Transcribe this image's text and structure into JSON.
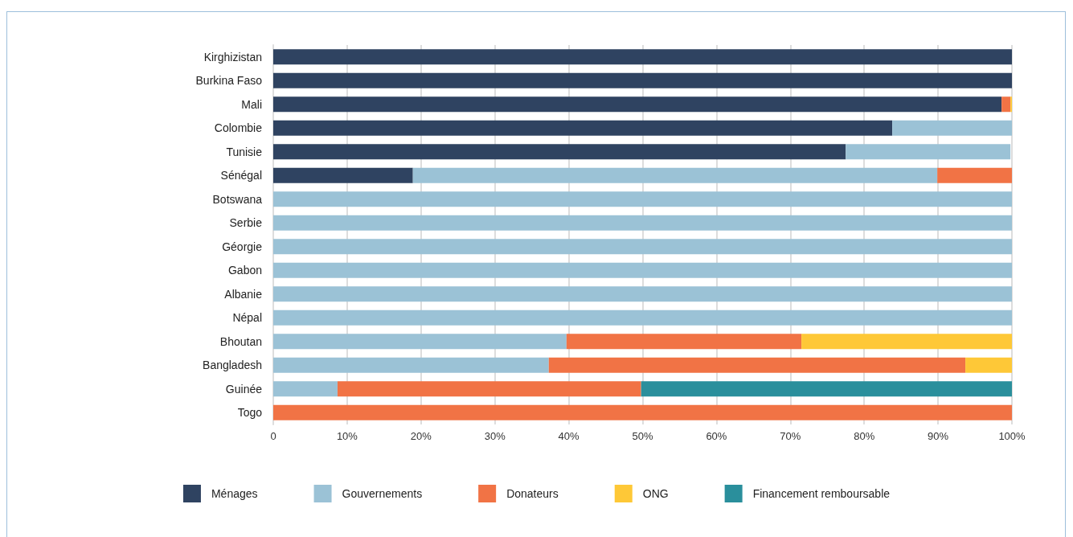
{
  "chart_data": {
    "type": "bar",
    "orientation": "horizontal",
    "stacked": true,
    "grid": "x",
    "legend": "bottom",
    "categories": [
      "Kirghizistan",
      "Burkina Faso",
      "Mali",
      "Colombie",
      "Tunisie",
      "Sénégal",
      "Botswana",
      "Serbie",
      "Géorgie",
      "Gabon",
      "Albanie",
      "Népal",
      "Bhoutan",
      "Bangladesh",
      "Guinée",
      "Togo"
    ],
    "xlim": [
      0,
      100
    ],
    "xticks": [
      0,
      {
        "value": 10,
        "label": "10%"
      },
      {
        "value": 20,
        "label": "20%"
      },
      {
        "value": 30,
        "label": "30%"
      },
      {
        "value": 40,
        "label": "40%"
      },
      {
        "value": 50,
        "label": "50%"
      },
      {
        "value": 60,
        "label": "60%"
      },
      {
        "value": 70,
        "label": "70%"
      },
      {
        "value": 80,
        "label": "80%"
      },
      {
        "value": 90,
        "label": "90%"
      },
      {
        "value": 100,
        "label": "100%"
      }
    ],
    "series": [
      {
        "name": "Ménages",
        "color": "#2f4361",
        "values": [
          100,
          100,
          98.6,
          83.8,
          77.5,
          18.9,
          null,
          null,
          null,
          null,
          null,
          null,
          null,
          null,
          null,
          null
        ]
      },
      {
        "name": "Gouvernements",
        "color": "#9bc2d6",
        "values": [
          null,
          null,
          null,
          16.2,
          22.3,
          71.0,
          100,
          100,
          100,
          100,
          100,
          100,
          39.7,
          37.3,
          8.7,
          null
        ]
      },
      {
        "name": "Donateurs",
        "color": "#f17345",
        "values": [
          null,
          null,
          1.2,
          null,
          null,
          10.1,
          null,
          null,
          null,
          null,
          null,
          null,
          31.8,
          56.4,
          41.1,
          100
        ]
      },
      {
        "name": "ONG",
        "color": "#fec837",
        "values": [
          null,
          null,
          0.2,
          null,
          null,
          null,
          null,
          null,
          null,
          null,
          null,
          null,
          28.5,
          6.3,
          null,
          null
        ]
      },
      {
        "name": "Financement remboursable",
        "color": "#2a8f9c",
        "values": [
          null,
          null,
          null,
          null,
          null,
          null,
          null,
          null,
          null,
          null,
          null,
          null,
          null,
          null,
          50.2,
          null
        ]
      }
    ]
  }
}
